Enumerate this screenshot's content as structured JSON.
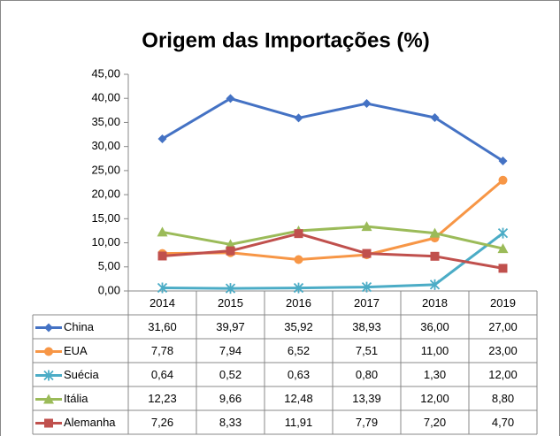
{
  "chart_data": {
    "type": "line",
    "title": "Origem das Importações (%)",
    "categories": [
      "2014",
      "2015",
      "2016",
      "2017",
      "2018",
      "2019"
    ],
    "ylim": [
      0,
      45
    ],
    "yticks": [
      {
        "value": 0,
        "label": "0,00"
      },
      {
        "value": 5,
        "label": "5,00"
      },
      {
        "value": 10,
        "label": "10,00"
      },
      {
        "value": 15,
        "label": "15,00"
      },
      {
        "value": 20,
        "label": "20,00"
      },
      {
        "value": 25,
        "label": "25,00"
      },
      {
        "value": 30,
        "label": "30,00"
      },
      {
        "value": 35,
        "label": "35,00"
      },
      {
        "value": 40,
        "label": "40,00"
      },
      {
        "value": 45,
        "label": "45,00"
      }
    ],
    "grid": false,
    "series": [
      {
        "name": "China",
        "color": "#4472c4",
        "marker": "diamond",
        "values": [
          31.6,
          39.97,
          35.92,
          38.93,
          36.0,
          27.0
        ],
        "value_labels": [
          "31,60",
          "39,97",
          "35,92",
          "38,93",
          "36,00",
          "27,00"
        ]
      },
      {
        "name": "EUA",
        "color": "#f79646",
        "marker": "circle",
        "values": [
          7.78,
          7.94,
          6.52,
          7.51,
          11.0,
          23.0
        ],
        "value_labels": [
          "7,78",
          "7,94",
          "6,52",
          "7,51",
          "11,00",
          "23,00"
        ]
      },
      {
        "name": "Suécia",
        "color": "#4bacc6",
        "marker": "star",
        "values": [
          0.64,
          0.52,
          0.63,
          0.8,
          1.3,
          12.0
        ],
        "value_labels": [
          "0,64",
          "0,52",
          "0,63",
          "0,80",
          "1,30",
          "12,00"
        ]
      },
      {
        "name": "Itália",
        "color": "#9bbb59",
        "marker": "triangle",
        "values": [
          12.23,
          9.66,
          12.48,
          13.39,
          12.0,
          8.8
        ],
        "value_labels": [
          "12,23",
          "9,66",
          "12,48",
          "13,39",
          "12,00",
          "8,80"
        ]
      },
      {
        "name": "Alemanha",
        "color": "#c0504d",
        "marker": "square",
        "values": [
          7.26,
          8.33,
          11.91,
          7.79,
          7.2,
          4.7
        ],
        "value_labels": [
          "7,26",
          "8,33",
          "11,91",
          "7,79",
          "7,20",
          "4,70"
        ]
      }
    ]
  }
}
